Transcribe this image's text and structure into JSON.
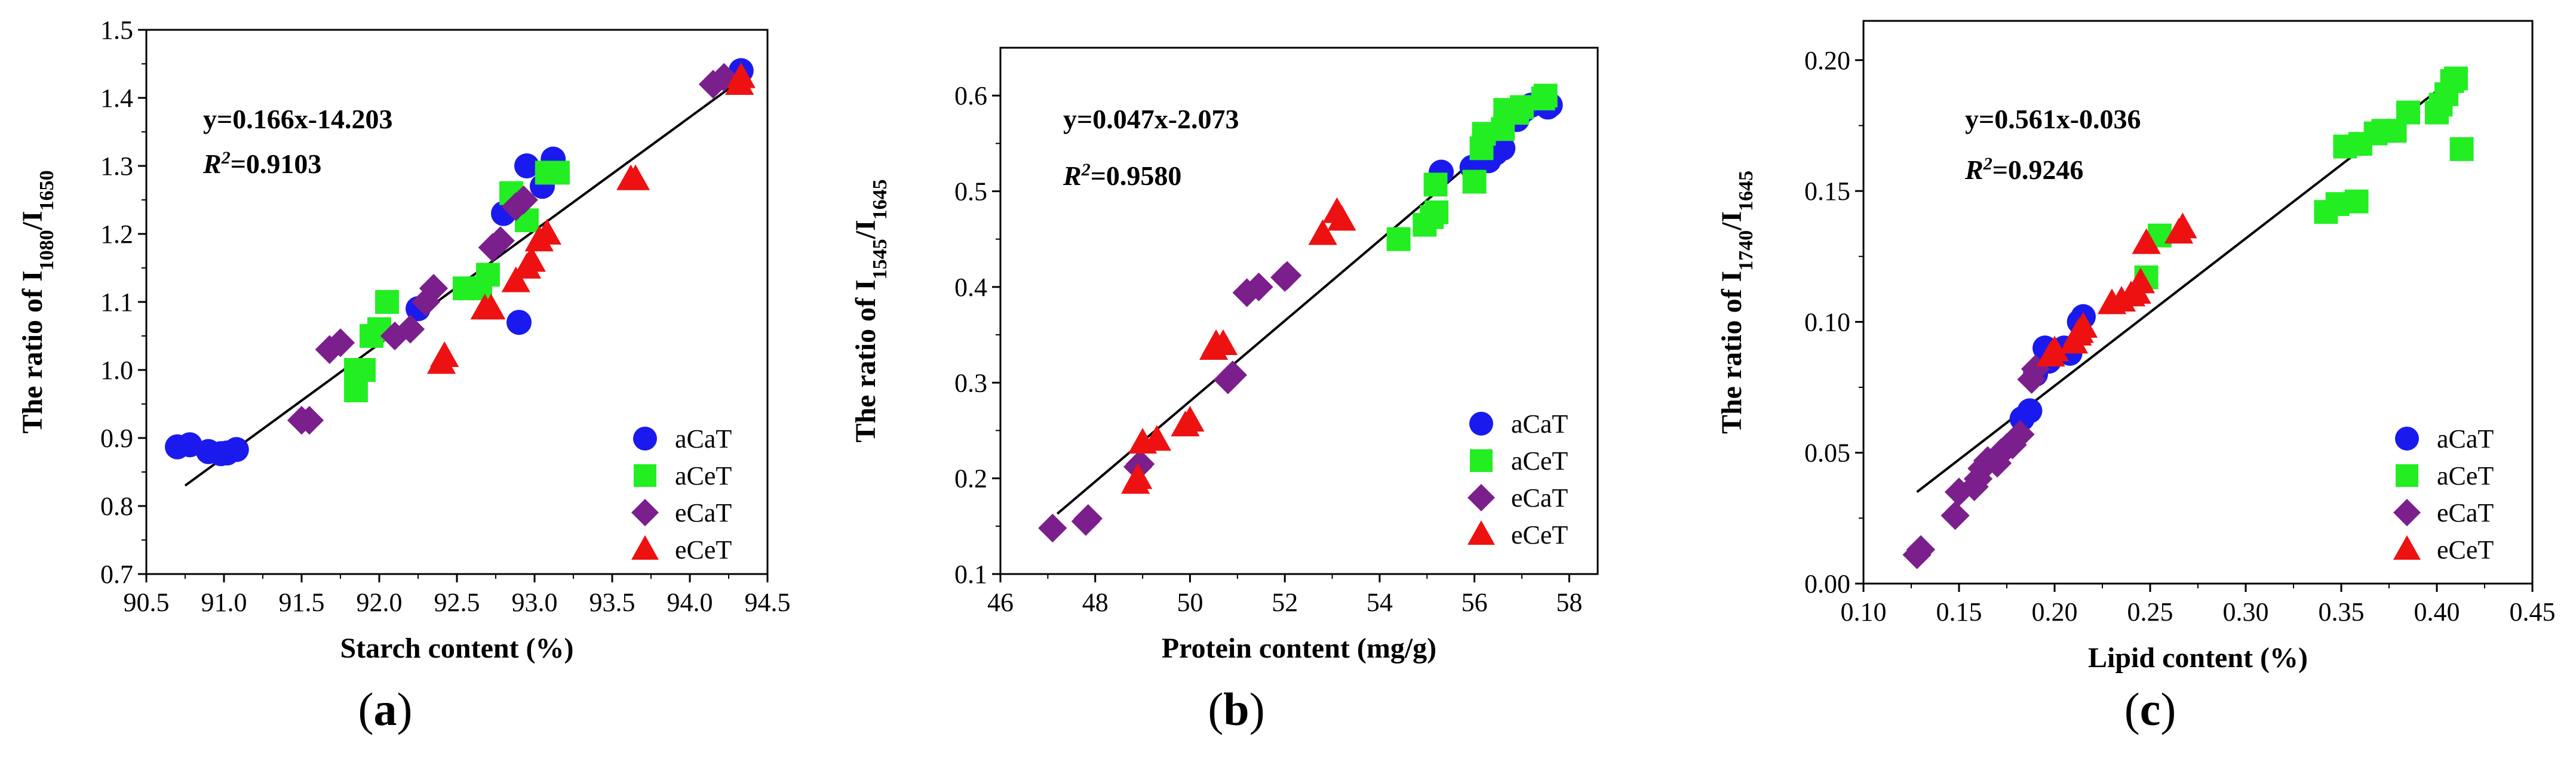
{
  "chart_data": [
    {
      "type": "scatter",
      "panel_label": "a",
      "xlabel": "Starch content (%)",
      "ylabel": {
        "prefix": "The ratio of I",
        "sub1": "1080",
        "mid": "/I",
        "sub2": "1650"
      },
      "xlim": [
        90.5,
        94.5
      ],
      "ylim": [
        0.7,
        1.5
      ],
      "xticks": [
        90.5,
        91.0,
        91.5,
        92.0,
        92.5,
        93.0,
        93.5,
        94.0,
        94.5
      ],
      "xtick_labels": [
        "90.5",
        "91.0",
        "91.5",
        "92.0",
        "92.5",
        "93.0",
        "93.5",
        "94.0",
        "94.5"
      ],
      "yticks": [
        0.7,
        0.8,
        0.9,
        1.0,
        1.1,
        1.2,
        1.3,
        1.4,
        1.5
      ],
      "ytick_labels": [
        "0.7",
        "0.8",
        "0.9",
        "1.0",
        "1.1",
        "1.2",
        "1.3",
        "1.4",
        "1.5"
      ],
      "equation": "y=0.166x-14.203",
      "r2": {
        "prefix": "R",
        "sup": "2",
        "value": "=0.9103"
      },
      "fit": {
        "x": [
          90.75,
          94.35
        ],
        "y": [
          0.83,
          1.43
        ]
      },
      "legend_position": "bottom-right",
      "series": [
        {
          "name": "aCaT",
          "x": [
            90.7,
            90.78,
            90.9,
            90.98,
            91.02,
            91.08,
            92.9,
            92.25,
            92.8,
            92.95,
            93.05,
            93.12,
            94.33
          ],
          "y": [
            0.887,
            0.89,
            0.88,
            0.877,
            0.878,
            0.883,
            1.07,
            1.09,
            1.23,
            1.3,
            1.27,
            1.31,
            1.44
          ]
        },
        {
          "name": "aCeT",
          "x": [
            91.85,
            91.9,
            91.95,
            92.05,
            92.55,
            92.65,
            92.7,
            92.85,
            92.95,
            93.08,
            93.15,
            92.0,
            91.85
          ],
          "y": [
            0.97,
            1.0,
            1.05,
            1.1,
            1.12,
            1.12,
            1.14,
            1.26,
            1.22,
            1.29,
            1.29,
            1.06,
            1.0
          ]
        },
        {
          "name": "eCaT",
          "x": [
            91.5,
            91.55,
            91.68,
            91.75,
            92.1,
            92.2,
            92.3,
            92.35,
            92.73,
            92.78,
            92.88,
            92.93,
            94.15,
            94.22
          ],
          "y": [
            0.926,
            0.926,
            1.03,
            1.04,
            1.05,
            1.06,
            1.1,
            1.12,
            1.18,
            1.19,
            1.24,
            1.25,
            1.42,
            1.43
          ]
        },
        {
          "name": "eCeT",
          "x": [
            92.4,
            92.42,
            92.68,
            92.72,
            92.88,
            92.95,
            92.98,
            93.03,
            93.08,
            93.62,
            93.65,
            94.32,
            94.33
          ],
          "y": [
            1.01,
            1.02,
            1.09,
            1.09,
            1.13,
            1.15,
            1.16,
            1.19,
            1.2,
            1.28,
            1.28,
            1.42,
            1.43
          ]
        }
      ]
    },
    {
      "type": "scatter",
      "panel_label": "b",
      "xlabel": "Protein content (mg/g)",
      "ylabel": {
        "prefix": "The ratio of I",
        "sub1": "1545",
        "mid": "/I",
        "sub2": "1645"
      },
      "xlim": [
        46,
        58.6
      ],
      "ylim": [
        0.1,
        0.65
      ],
      "xticks": [
        46,
        48,
        50,
        52,
        54,
        56,
        58
      ],
      "xtick_labels": [
        "46",
        "48",
        "50",
        "52",
        "54",
        "56",
        "58"
      ],
      "yticks": [
        0.1,
        0.2,
        0.3,
        0.4,
        0.5,
        0.6
      ],
      "ytick_labels": [
        "0.1",
        "0.2",
        "0.3",
        "0.4",
        "0.5",
        "0.6"
      ],
      "equation": "y=0.047x-2.073",
      "r2": {
        "prefix": "R",
        "sup": "2",
        "value": "=0.9580"
      },
      "fit": {
        "x": [
          47.2,
          57.6
        ],
        "y": [
          0.163,
          0.6
        ]
      },
      "legend_position": "bottom-right",
      "series": [
        {
          "name": "aCaT",
          "x": [
            55.3,
            55.95,
            56.3,
            56.45,
            56.6,
            56.9,
            57.05,
            57.2,
            57.55,
            57.6
          ],
          "y": [
            0.52,
            0.525,
            0.532,
            0.54,
            0.545,
            0.575,
            0.585,
            0.59,
            0.588,
            0.59
          ]
        },
        {
          "name": "aCeT",
          "x": [
            54.4,
            54.95,
            55.1,
            55.2,
            55.18,
            56.0,
            56.15,
            56.2,
            56.6,
            56.65,
            56.9,
            57.0,
            57.45,
            57.5
          ],
          "y": [
            0.45,
            0.465,
            0.473,
            0.478,
            0.507,
            0.51,
            0.545,
            0.56,
            0.565,
            0.585,
            0.582,
            0.588,
            0.597,
            0.6
          ]
        },
        {
          "name": "eCaT",
          "x": [
            47.1,
            47.8,
            47.85,
            48.9,
            48.95,
            50.8,
            50.9,
            51.2,
            51.45,
            52.0,
            52.05
          ],
          "y": [
            0.148,
            0.155,
            0.158,
            0.212,
            0.215,
            0.303,
            0.308,
            0.394,
            0.4,
            0.41,
            0.412
          ]
        },
        {
          "name": "eCeT",
          "x": [
            48.85,
            48.9,
            49.0,
            49.3,
            49.9,
            50.0,
            50.5,
            50.55,
            50.7,
            52.8,
            53.1,
            53.2
          ],
          "y": [
            0.195,
            0.2,
            0.237,
            0.24,
            0.255,
            0.26,
            0.335,
            0.34,
            0.34,
            0.455,
            0.478,
            0.47
          ]
        }
      ]
    },
    {
      "type": "scatter",
      "panel_label": "c",
      "xlabel": "Lipid content (%)",
      "ylabel": {
        "prefix": "The ratio of I",
        "sub1": "1740",
        "mid": "/I",
        "sub2": "1645"
      },
      "xlim": [
        0.1,
        0.45
      ],
      "ylim": [
        0.0,
        0.215
      ],
      "xticks": [
        0.1,
        0.15,
        0.2,
        0.25,
        0.3,
        0.35,
        0.4,
        0.45
      ],
      "xtick_labels": [
        "0.10",
        "0.15",
        "0.20",
        "0.25",
        "0.30",
        "0.35",
        "0.40",
        "0.45"
      ],
      "yticks": [
        0.0,
        0.05,
        0.1,
        0.15,
        0.2
      ],
      "ytick_labels": [
        "0.00",
        "0.05",
        "0.10",
        "0.15",
        "0.20"
      ],
      "equation": "y=0.561x-0.036",
      "r2": {
        "prefix": "R",
        "sup": "2",
        "value": "=0.9246"
      },
      "fit": {
        "x": [
          0.128,
          0.405
        ],
        "y": [
          0.035,
          0.191
        ]
      },
      "legend_position": "bottom-right",
      "series": [
        {
          "name": "aCaT",
          "x": [
            0.183,
            0.187,
            0.19,
            0.195,
            0.197,
            0.205,
            0.208,
            0.213,
            0.215
          ],
          "y": [
            0.063,
            0.066,
            0.08,
            0.09,
            0.085,
            0.09,
            0.088,
            0.1,
            0.102
          ]
        },
        {
          "name": "aCeT",
          "x": [
            0.248,
            0.255,
            0.342,
            0.348,
            0.352,
            0.358,
            0.36,
            0.368,
            0.372,
            0.378,
            0.385,
            0.4,
            0.402,
            0.405,
            0.408,
            0.41,
            0.413
          ],
          "y": [
            0.117,
            0.133,
            0.142,
            0.145,
            0.167,
            0.146,
            0.168,
            0.172,
            0.173,
            0.173,
            0.18,
            0.18,
            0.183,
            0.187,
            0.192,
            0.193,
            0.166
          ]
        },
        {
          "name": "eCaT",
          "x": [
            0.128,
            0.13,
            0.148,
            0.15,
            0.158,
            0.16,
            0.162,
            0.165,
            0.17,
            0.172,
            0.175,
            0.178,
            0.182,
            0.188,
            0.19
          ],
          "y": [
            0.011,
            0.013,
            0.026,
            0.035,
            0.037,
            0.04,
            0.044,
            0.047,
            0.046,
            0.05,
            0.052,
            0.053,
            0.057,
            0.078,
            0.082
          ]
        },
        {
          "name": "eCeT",
          "x": [
            0.198,
            0.2,
            0.21,
            0.212,
            0.213,
            0.215,
            0.23,
            0.235,
            0.24,
            0.243,
            0.245,
            0.248,
            0.265,
            0.267
          ],
          "y": [
            0.087,
            0.089,
            0.092,
            0.095,
            0.096,
            0.098,
            0.107,
            0.108,
            0.11,
            0.111,
            0.115,
            0.13,
            0.134,
            0.136
          ]
        }
      ]
    }
  ],
  "legend": {
    "series_colors": {
      "aCaT": "#1a1aee",
      "aCeT": "#22ee22",
      "eCaT": "#7b1f8c",
      "eCeT": "#ee1111"
    },
    "series_markers": {
      "aCaT": "circle",
      "aCeT": "square",
      "eCaT": "diamond",
      "eCeT": "triangle"
    }
  }
}
